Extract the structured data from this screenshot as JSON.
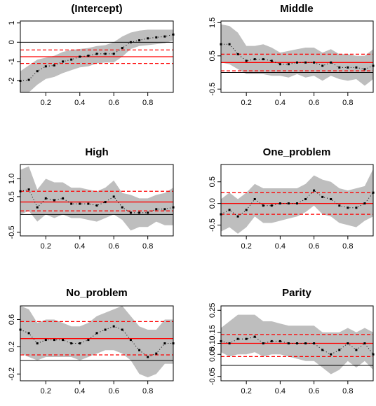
{
  "colors": {
    "band": "#bebebe",
    "estimate": "#000000",
    "ols_line": "#ff0000",
    "zero_line": "#000000",
    "axis": "#000000"
  },
  "chart_data": [
    {
      "type": "line",
      "title": "(Intercept)",
      "xlabel": "",
      "ylabel": "",
      "xlim": [
        0.05,
        0.95
      ],
      "ylim": [
        -2.6,
        1.1
      ],
      "xticks": [
        "0.2",
        "0.4",
        "0.6",
        "0.8"
      ],
      "yticks": [
        "-2",
        "-1",
        "0",
        "1"
      ],
      "x": [
        0.05,
        0.1,
        0.15,
        0.2,
        0.25,
        0.3,
        0.35,
        0.4,
        0.45,
        0.5,
        0.55,
        0.6,
        0.65,
        0.7,
        0.75,
        0.8,
        0.85,
        0.9,
        0.95
      ],
      "estimate": [
        -2.0,
        -1.95,
        -1.5,
        -1.25,
        -1.2,
        -1.0,
        -0.9,
        -0.75,
        -0.7,
        -0.6,
        -0.6,
        -0.6,
        -0.3,
        0.0,
        0.1,
        0.2,
        0.25,
        0.3,
        0.4
      ],
      "band_lower": [
        -2.6,
        -2.6,
        -2.2,
        -1.9,
        -1.8,
        -1.6,
        -1.45,
        -1.3,
        -1.25,
        -1.1,
        -1.05,
        -1.05,
        -0.75,
        -0.35,
        -0.2,
        -0.15,
        -0.1,
        -0.05,
        0.1
      ],
      "band_upper": [
        -1.5,
        -1.2,
        -0.9,
        -0.8,
        -0.7,
        -0.5,
        -0.4,
        -0.35,
        -0.3,
        -0.2,
        -0.15,
        0.0,
        0.3,
        0.5,
        0.6,
        0.65,
        0.65,
        0.65,
        0.65
      ],
      "ols": -0.75,
      "ols_ci": [
        -1.1,
        -0.4
      ],
      "zero": 0
    },
    {
      "type": "line",
      "title": "Middle",
      "xlabel": "",
      "ylabel": "",
      "xlim": [
        0.05,
        0.95
      ],
      "ylim": [
        -0.6,
        1.55
      ],
      "xticks": [
        "0.2",
        "0.4",
        "0.6",
        "0.8"
      ],
      "yticks": [
        "-0.5",
        "0.5",
        "1.5"
      ],
      "x": [
        0.05,
        0.1,
        0.15,
        0.2,
        0.25,
        0.3,
        0.35,
        0.4,
        0.45,
        0.5,
        0.55,
        0.6,
        0.65,
        0.7,
        0.75,
        0.8,
        0.85,
        0.9,
        0.95
      ],
      "estimate": [
        0.85,
        0.85,
        0.55,
        0.35,
        0.4,
        0.4,
        0.35,
        0.25,
        0.25,
        0.3,
        0.3,
        0.3,
        0.2,
        0.3,
        0.15,
        0.15,
        0.15,
        0.1,
        0.2
      ],
      "band_lower": [
        0.3,
        0.25,
        0.1,
        -0.05,
        -0.05,
        -0.05,
        -0.1,
        -0.1,
        -0.15,
        -0.05,
        -0.15,
        -0.1,
        -0.25,
        -0.1,
        -0.2,
        -0.25,
        -0.2,
        -0.4,
        -0.2
      ],
      "band_upper": [
        1.45,
        1.4,
        1.2,
        0.8,
        0.8,
        0.85,
        0.75,
        0.6,
        0.65,
        0.7,
        0.75,
        0.75,
        0.6,
        0.7,
        0.55,
        0.55,
        0.5,
        0.5,
        0.7
      ],
      "ols": 0.3,
      "ols_ci": [
        0.05,
        0.55
      ],
      "zero": 0
    },
    {
      "type": "line",
      "title": "High",
      "xlabel": "",
      "ylabel": "",
      "xlim": [
        0.05,
        0.95
      ],
      "ylim": [
        -0.6,
        1.4
      ],
      "xticks": [
        "0.2",
        "0.4",
        "0.6",
        "0.8"
      ],
      "yticks": [
        "-0.5",
        "0.5",
        "1.0"
      ],
      "x": [
        0.05,
        0.1,
        0.15,
        0.2,
        0.25,
        0.3,
        0.35,
        0.4,
        0.45,
        0.5,
        0.55,
        0.6,
        0.65,
        0.7,
        0.75,
        0.8,
        0.85,
        0.9,
        0.95
      ],
      "estimate": [
        0.65,
        0.7,
        0.2,
        0.45,
        0.4,
        0.45,
        0.3,
        0.3,
        0.3,
        0.25,
        0.35,
        0.5,
        0.2,
        0.05,
        0.05,
        0.05,
        0.15,
        0.15,
        0.2
      ],
      "band_lower": [
        0.0,
        0.1,
        -0.2,
        0.0,
        -0.1,
        0.0,
        -0.1,
        -0.1,
        -0.15,
        -0.2,
        -0.1,
        0.0,
        -0.15,
        -0.45,
        -0.35,
        -0.35,
        -0.2,
        -0.3,
        -0.3
      ],
      "band_upper": [
        1.25,
        1.35,
        0.7,
        1.0,
        0.9,
        0.9,
        0.75,
        0.75,
        0.7,
        0.65,
        0.75,
        0.95,
        0.6,
        0.55,
        0.45,
        0.45,
        0.55,
        0.6,
        0.75
      ],
      "ols": 0.35,
      "ols_ci": [
        0.1,
        0.65
      ],
      "zero": 0
    },
    {
      "type": "line",
      "title": "One_problem",
      "xlabel": "",
      "ylabel": "",
      "xlim": [
        0.05,
        0.95
      ],
      "ylim": [
        -0.75,
        0.9
      ],
      "xticks": [
        "0.2",
        "0.4",
        "0.6",
        "0.8"
      ],
      "yticks": [
        "-0.5",
        "0.0",
        "0.5"
      ],
      "x": [
        0.05,
        0.1,
        0.15,
        0.2,
        0.25,
        0.3,
        0.35,
        0.4,
        0.45,
        0.5,
        0.55,
        0.6,
        0.65,
        0.7,
        0.75,
        0.8,
        0.85,
        0.9,
        0.95
      ],
      "estimate": [
        -0.25,
        -0.15,
        -0.3,
        -0.15,
        0.1,
        -0.05,
        -0.05,
        0.0,
        0.0,
        0.0,
        0.1,
        0.3,
        0.15,
        0.1,
        -0.05,
        -0.1,
        -0.1,
        0.0,
        0.25
      ],
      "band_lower": [
        -0.65,
        -0.55,
        -0.7,
        -0.55,
        -0.3,
        -0.45,
        -0.45,
        -0.4,
        -0.35,
        -0.3,
        -0.2,
        -0.05,
        -0.25,
        -0.3,
        -0.45,
        -0.5,
        -0.55,
        -0.4,
        -0.3
      ],
      "band_upper": [
        0.1,
        0.25,
        0.1,
        0.25,
        0.45,
        0.35,
        0.35,
        0.35,
        0.35,
        0.35,
        0.45,
        0.65,
        0.55,
        0.5,
        0.35,
        0.3,
        0.35,
        0.4,
        0.8
      ],
      "ols": 0.0,
      "ols_ci": [
        -0.25,
        0.25
      ],
      "zero": 0
    },
    {
      "type": "line",
      "title": "No_problem",
      "xlabel": "",
      "ylabel": "",
      "xlim": [
        0.05,
        0.95
      ],
      "ylim": [
        -0.3,
        0.8
      ],
      "xticks": [
        "0.2",
        "0.4",
        "0.6",
        "0.8"
      ],
      "yticks": [
        "-0.2",
        "0.2",
        "0.6"
      ],
      "x": [
        0.05,
        0.1,
        0.15,
        0.2,
        0.25,
        0.3,
        0.35,
        0.4,
        0.45,
        0.5,
        0.55,
        0.6,
        0.65,
        0.7,
        0.75,
        0.8,
        0.85,
        0.9,
        0.95
      ],
      "estimate": [
        0.45,
        0.4,
        0.25,
        0.3,
        0.3,
        0.3,
        0.25,
        0.25,
        0.3,
        0.4,
        0.45,
        0.5,
        0.45,
        0.3,
        0.15,
        0.05,
        0.1,
        0.25,
        0.25
      ],
      "band_lower": [
        0.1,
        0.05,
        0.0,
        0.05,
        0.05,
        0.05,
        0.05,
        0.0,
        0.05,
        0.1,
        0.15,
        0.15,
        0.1,
        0.0,
        -0.2,
        -0.25,
        -0.2,
        -0.05,
        -0.05
      ],
      "band_upper": [
        0.8,
        0.75,
        0.55,
        0.6,
        0.6,
        0.55,
        0.5,
        0.5,
        0.55,
        0.65,
        0.7,
        0.75,
        0.8,
        0.65,
        0.5,
        0.45,
        0.45,
        0.6,
        0.6
      ],
      "ols": 0.32,
      "ols_ci": [
        0.08,
        0.57
      ],
      "zero": 0
    },
    {
      "type": "line",
      "title": "Parity",
      "xlabel": "",
      "ylabel": "",
      "xlim": [
        0.05,
        0.95
      ],
      "ylim": [
        -0.07,
        0.27
      ],
      "xticks": [
        "0.2",
        "0.4",
        "0.6",
        "0.8"
      ],
      "yticks": [
        "-0.05",
        "0.05",
        "0.10",
        "0.15",
        "0.25"
      ],
      "x": [
        0.05,
        0.1,
        0.15,
        0.2,
        0.25,
        0.3,
        0.35,
        0.4,
        0.45,
        0.5,
        0.55,
        0.6,
        0.65,
        0.7,
        0.75,
        0.8,
        0.85,
        0.9,
        0.95
      ],
      "estimate": [
        0.11,
        0.1,
        0.12,
        0.12,
        0.13,
        0.1,
        0.11,
        0.11,
        0.1,
        0.1,
        0.1,
        0.1,
        0.07,
        0.05,
        0.07,
        0.1,
        0.07,
        0.1,
        0.05
      ],
      "band_lower": [
        0.06,
        0.04,
        0.05,
        0.05,
        0.06,
        0.04,
        0.05,
        0.05,
        0.04,
        0.03,
        0.02,
        0.02,
        -0.01,
        -0.04,
        -0.02,
        0.02,
        -0.01,
        0.02,
        -0.02
      ],
      "band_upper": [
        0.17,
        0.2,
        0.23,
        0.23,
        0.23,
        0.2,
        0.2,
        0.19,
        0.18,
        0.18,
        0.18,
        0.18,
        0.15,
        0.15,
        0.15,
        0.17,
        0.15,
        0.17,
        0.15
      ],
      "ols": 0.1,
      "ols_ci": [
        0.04,
        0.14
      ],
      "zero": 0
    }
  ]
}
